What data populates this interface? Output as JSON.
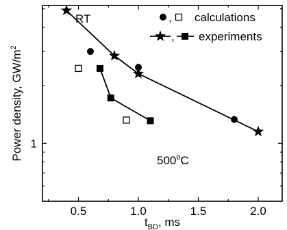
{
  "chart_data": {
    "type": "scatter",
    "xlabel": "t",
    "xlabel_sub": "BD",
    "xlabel_unit": ", ms",
    "ylabel": "Power density, GW/m",
    "ylabel_sup": "2",
    "xlim": [
      0.2,
      2.2
    ],
    "ylim": [
      0.5,
      5.2
    ],
    "y_scale": "log",
    "x_ticks": [
      "0.5",
      "1.0",
      "1.5",
      "2.0"
    ],
    "y_ticks": [
      "1"
    ],
    "grid": false,
    "legend": {
      "position": "top-right",
      "calculations_label": "calculations",
      "experiments_label": "experiments",
      "separator": ","
    },
    "annotations": {
      "rt": "RT",
      "hot": "500",
      "hot_sup": "o",
      "hot_unit": "C"
    },
    "series": [
      {
        "key": "rt_calc",
        "marker": "circle",
        "line": false,
        "x": [
          0.6,
          1.0,
          1.8
        ],
        "y": [
          3.0,
          2.48,
          1.33
        ]
      },
      {
        "key": "hot_calc",
        "marker": "open-square",
        "line": false,
        "x": [
          0.5,
          0.9
        ],
        "y": [
          2.45,
          1.32
        ]
      },
      {
        "key": "rt_exp",
        "marker": "star",
        "line": true,
        "x": [
          0.4,
          0.8,
          1.0,
          2.0
        ],
        "y": [
          4.9,
          2.85,
          2.3,
          1.15
        ]
      },
      {
        "key": "hot_exp",
        "marker": "filled-square",
        "line": true,
        "x": [
          0.68,
          0.77,
          1.1
        ],
        "y": [
          2.45,
          1.72,
          1.31
        ]
      }
    ]
  }
}
